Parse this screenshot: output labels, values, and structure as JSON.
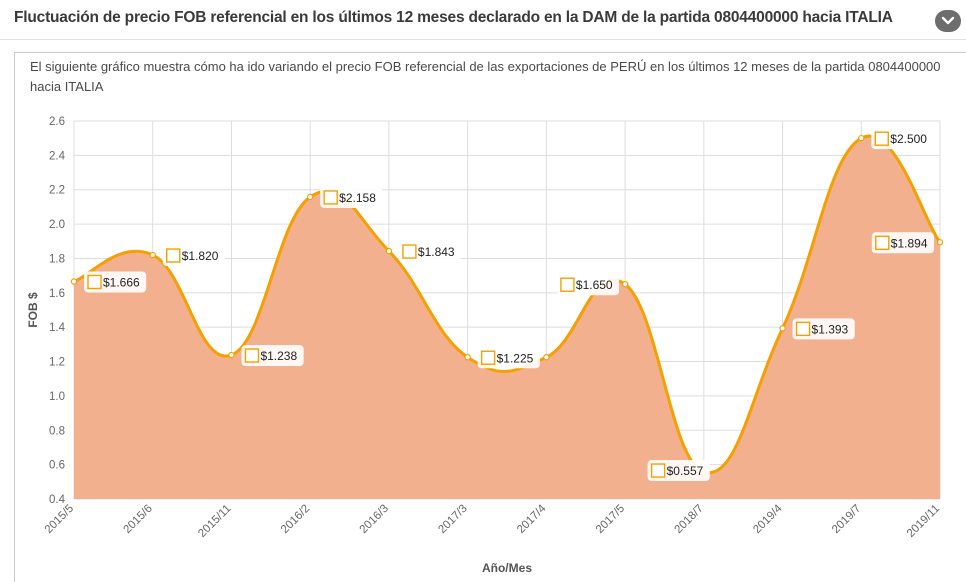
{
  "header": {
    "title": "Fluctuación de precio FOB referencial en los últimos 12 meses declarado en la DAM de la partida 0804400000 hacia ITALIA",
    "collapse_icon": "chevron-down-icon"
  },
  "description": "El siguiente gráfico muestra cómo ha ido variando el precio FOB referencial de las exportaciones de PERÚ en los últimos 12 meses de la partida 0804400000 hacia ITALIA",
  "colors": {
    "area_fill": "#f2b08e",
    "line": "#f5a000",
    "grid": "#dddddd"
  },
  "chart_data": {
    "type": "area",
    "xlabel": "Año/Mes",
    "ylabel": "FOB $",
    "ylim": [
      0.4,
      2.6
    ],
    "yticks": [
      "0.4",
      "0.6",
      "0.8",
      "1.0",
      "1.2",
      "1.4",
      "1.6",
      "1.8",
      "2.0",
      "2.2",
      "2.4",
      "2.6"
    ],
    "grid": true,
    "categories": [
      "2015/5",
      "2015/6",
      "2015/11",
      "2016/2",
      "2016/3",
      "2017/3",
      "2017/4",
      "2017/5",
      "2018/7",
      "2019/4",
      "2019/7",
      "2019/11"
    ],
    "values": [
      1.666,
      1.82,
      1.238,
      2.158,
      1.843,
      1.225,
      1.225,
      1.65,
      0.557,
      1.393,
      2.5,
      1.894
    ],
    "labels": [
      "$1.666",
      "$1.820",
      "$1.238",
      "$2.158",
      "$1.843",
      "$1.225",
      "",
      "$1.650",
      "$0.557",
      "$1.393",
      "$2.500",
      "$1.894"
    ]
  }
}
